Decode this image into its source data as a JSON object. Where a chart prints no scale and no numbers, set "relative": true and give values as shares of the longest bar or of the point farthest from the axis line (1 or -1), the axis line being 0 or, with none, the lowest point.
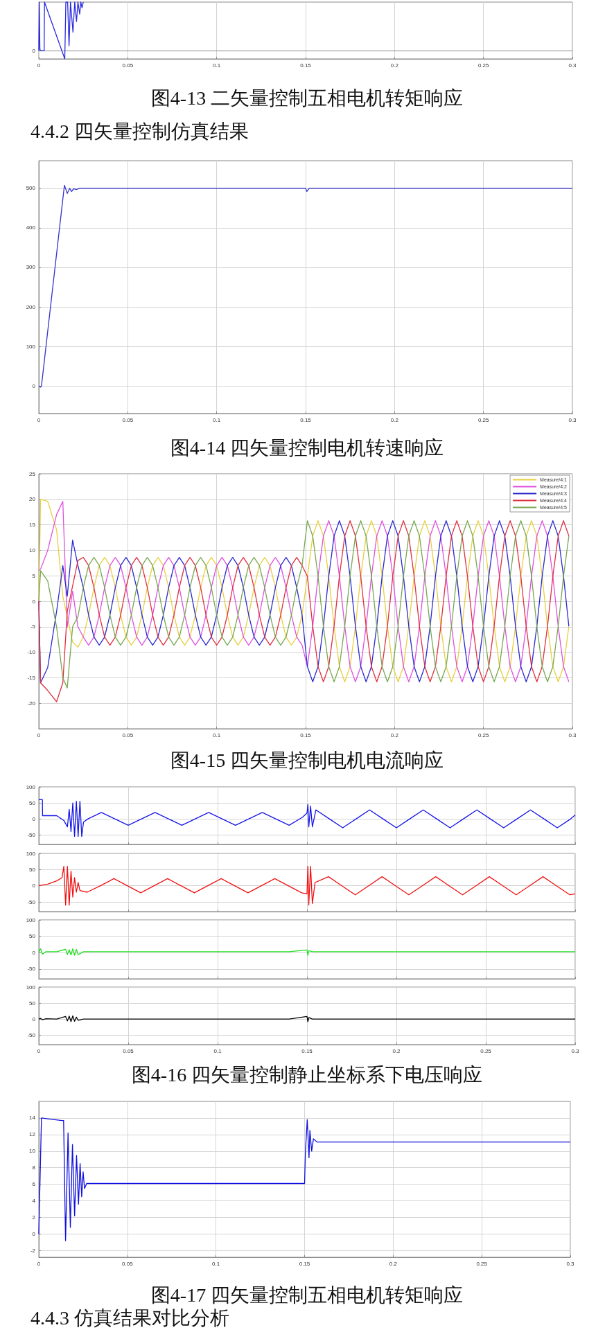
{
  "chart_data": [
    {
      "type": "line",
      "title": "图4-13 二矢量控制五相电机转矩响应",
      "relative": true,
      "tick_labels": "x",
      "grid": "x",
      "annotations": [
        {
          "text": "0",
          "x": 0,
          "y": 0
        },
        "4.4.2 四矢量控制仿真结果"
      ],
      "x": [
        0,
        0.0003,
        0.0006,
        0.0008,
        0.003,
        0.0032,
        0.0146,
        0.0152,
        0.0162,
        0.017,
        0.0178,
        0.0192,
        0.0202,
        0.0212,
        0.022,
        0.023,
        0.0236,
        0.0243,
        0.025
      ],
      "series": [
        {
          "color": "#2a2ae0",
          "values": [
            0,
            1,
            0.05,
            0,
            0,
            1,
            -0.17,
            1,
            1,
            0.1,
            1,
            0.38,
            1,
            0.6,
            1,
            0.75,
            1,
            0.88,
            1
          ]
        }
      ],
      "xlim": [
        0,
        0.3
      ],
      "xticks": [
        0,
        0.05,
        0.1,
        0.15,
        0.2,
        0.25,
        0.3
      ]
    },
    {
      "type": "line",
      "title": "图4-14 四矢量控制电机转速响应",
      "grid": true,
      "x": [
        0,
        0.001,
        0.0015,
        0.0144,
        0.016,
        0.0173,
        0.0184,
        0.0196,
        0.021,
        0.023,
        0.1,
        0.15,
        0.1507,
        0.152,
        0.2,
        0.3
      ],
      "series": [
        {
          "color": "#3333cc",
          "values": [
            0,
            -3,
            0,
            508,
            487,
            500,
            492,
            499,
            497,
            500,
            500,
            500,
            492,
            500,
            500,
            500
          ]
        }
      ],
      "xlim": [
        0,
        0.3
      ],
      "xticks": [
        0,
        0.05,
        0.1,
        0.15,
        0.2,
        0.25,
        0.3
      ],
      "ylim": [
        -70,
        570
      ],
      "yticks": [
        0,
        100,
        200,
        300,
        400,
        500
      ]
    },
    {
      "type": "line",
      "title": "图4-15 四矢量控制电机电流响应",
      "grid": true,
      "legend": "top right",
      "x": [
        0,
        0.001,
        0.005,
        0.01,
        0.0135,
        0.016,
        0.019,
        0.022,
        0.025,
        0.028,
        0.031,
        0.034,
        0.037,
        0.04,
        0.043,
        0.046,
        0.049,
        0.052,
        0.055,
        0.058,
        0.061,
        0.064,
        0.067,
        0.07,
        0.073,
        0.076,
        0.079,
        0.082,
        0.085,
        0.088,
        0.091,
        0.094,
        0.097,
        0.1,
        0.103,
        0.106,
        0.109,
        0.112,
        0.115,
        0.118,
        0.121,
        0.124,
        0.127,
        0.13,
        0.133,
        0.136,
        0.139,
        0.142,
        0.145,
        0.148,
        0.151,
        0.154,
        0.157,
        0.16,
        0.163,
        0.166,
        0.169,
        0.172,
        0.175,
        0.178,
        0.181,
        0.184,
        0.187,
        0.19,
        0.193,
        0.196,
        0.199,
        0.202,
        0.205,
        0.208,
        0.211,
        0.214,
        0.217,
        0.22,
        0.223,
        0.226,
        0.229,
        0.232,
        0.235,
        0.238,
        0.241,
        0.244,
        0.247,
        0.25,
        0.253,
        0.256,
        0.259,
        0.262,
        0.265,
        0.268,
        0.271,
        0.274,
        0.277,
        0.28,
        0.283,
        0.286,
        0.289,
        0.292,
        0.295,
        0.298
      ],
      "series": [
        {
          "name": "Measure/4:1",
          "color": "#e8d040",
          "values": [
            0,
            20,
            19.6,
            14,
            1,
            -3,
            -8,
            -9,
            -7,
            -2.7,
            2.7,
            7,
            8.6,
            7,
            2.7,
            -2.7,
            -7,
            -8.6,
            -7,
            -2.7,
            2.7,
            7,
            8.6,
            7,
            2.7,
            -2.7,
            -7,
            -8.6,
            -7,
            -2.7,
            2.7,
            7,
            8.6,
            7,
            2.7,
            -2.7,
            -7,
            -8.6,
            -7,
            -2.7,
            2.7,
            7,
            8.6,
            7,
            2.7,
            -2.7,
            -7,
            -8.6,
            -7,
            -2.7,
            4.9,
            12.8,
            15.8,
            12.8,
            4.9,
            -4.9,
            -12.8,
            -15.8,
            -12.8,
            -4.9,
            4.9,
            12.8,
            15.8,
            12.8,
            4.9,
            -4.9,
            -12.8,
            -15.8,
            -12.8,
            -4.9,
            4.9,
            12.8,
            15.8,
            12.8,
            4.9,
            -4.9,
            -12.8,
            -15.8,
            -12.8,
            -4.9,
            4.9,
            12.8,
            15.8,
            12.8,
            4.9,
            -4.9,
            -12.8,
            -15.8,
            -12.8,
            -4.9,
            4.9,
            12.8,
            15.8,
            12.8,
            4.9,
            -4.9,
            -12.8,
            -15.8,
            -12.8,
            -4.9
          ]
        },
        {
          "name": "Measure/4:2",
          "color": "#e050e0",
          "values": [
            6,
            6.3,
            10,
            17,
            19.6,
            -5,
            2,
            -5,
            -7,
            -8.6,
            -7,
            -2.7,
            2.7,
            7,
            8.6,
            7,
            2.7,
            -2.7,
            -7,
            -8.6,
            -7,
            -2.7,
            2.7,
            7,
            8.6,
            7,
            2.7,
            -2.7,
            -7,
            -8.6,
            -7,
            -2.7,
            2.7,
            7,
            8.6,
            7,
            2.7,
            -2.7,
            -7,
            -8.6,
            -7,
            -2.7,
            2.7,
            7,
            8.6,
            7,
            2.7,
            -2.7,
            -7,
            -8.6,
            -12.8,
            -4.9,
            4.9,
            12.8,
            15.8,
            12.8,
            4.9,
            -4.9,
            -12.8,
            -15.8,
            -12.8,
            -4.9,
            4.9,
            12.8,
            15.8,
            12.8,
            4.9,
            -4.9,
            -12.8,
            -15.8,
            -12.8,
            -4.9,
            4.9,
            12.8,
            15.8,
            12.8,
            4.9,
            -4.9,
            -12.8,
            -15.8,
            -12.8,
            -4.9,
            4.9,
            12.8,
            15.8,
            12.8,
            4.9,
            -4.9,
            -12.8,
            -15.8,
            -12.8,
            -4.9,
            4.9,
            12.8,
            15.8,
            12.8,
            4.9,
            -4.9,
            -12.8,
            -15.8
          ]
        },
        {
          "name": "Measure/4:3",
          "color": "#2a2ad0",
          "values": [
            0,
            -16,
            -13,
            -2,
            7,
            1,
            12,
            7,
            2.7,
            -2.7,
            -7,
            -8.6,
            -7,
            -2.7,
            2.7,
            7,
            8.6,
            7,
            2.7,
            -2.7,
            -7,
            -8.6,
            -7,
            -2.7,
            2.7,
            7,
            8.6,
            7,
            2.7,
            -2.7,
            -7,
            -8.6,
            -7,
            -2.7,
            2.7,
            7,
            8.6,
            7,
            2.7,
            -2.7,
            -7,
            -8.6,
            -7,
            -2.7,
            2.7,
            7,
            8.6,
            7,
            2.7,
            -2.7,
            -12.8,
            -15.8,
            -12.8,
            -4.9,
            4.9,
            12.8,
            15.8,
            12.8,
            4.9,
            -4.9,
            -12.8,
            -15.8,
            -12.8,
            -4.9,
            4.9,
            12.8,
            15.8,
            12.8,
            4.9,
            -4.9,
            -12.8,
            -15.8,
            -12.8,
            -4.9,
            4.9,
            12.8,
            15.8,
            12.8,
            4.9,
            -4.9,
            -12.8,
            -15.8,
            -12.8,
            -4.9,
            4.9,
            12.8,
            15.8,
            12.8,
            4.9,
            -4.9,
            -12.8,
            -15.8,
            -12.8,
            -4.9,
            4.9,
            12.8,
            15.8,
            12.8,
            4.9,
            -4.9
          ]
        },
        {
          "name": "Measure/4:4",
          "color": "#e03040",
          "values": [
            0,
            -16,
            -17.5,
            -19.7,
            -16,
            -2,
            3,
            8,
            8.6,
            7,
            2.7,
            -2.7,
            -7,
            -8.6,
            -7,
            -2.7,
            2.7,
            7,
            8.6,
            7,
            2.7,
            -2.7,
            -7,
            -8.6,
            -7,
            -2.7,
            2.7,
            7,
            8.6,
            7,
            2.7,
            -2.7,
            -7,
            -8.6,
            -7,
            -2.7,
            2.7,
            7,
            8.6,
            7,
            2.7,
            -2.7,
            -7,
            -8.6,
            -7,
            -2.7,
            2.7,
            7,
            8.6,
            7,
            4.9,
            -4.9,
            -12.8,
            -15.8,
            -12.8,
            -4.9,
            4.9,
            12.8,
            15.8,
            12.8,
            4.9,
            -4.9,
            -12.8,
            -15.8,
            -12.8,
            -4.9,
            4.9,
            12.8,
            15.8,
            12.8,
            4.9,
            -4.9,
            -12.8,
            -15.8,
            -12.8,
            -4.9,
            4.9,
            12.8,
            15.8,
            12.8,
            4.9,
            -4.9,
            -12.8,
            -15.8,
            -12.8,
            -4.9,
            4.9,
            12.8,
            15.8,
            12.8,
            4.9,
            -4.9,
            -12.8,
            -15.8,
            -12.8,
            -4.9,
            4.9,
            12.8,
            15.8,
            12.8
          ]
        },
        {
          "name": "Measure/4:5",
          "color": "#78a850",
          "values": [
            0,
            6,
            4,
            -5,
            -15,
            -17,
            -5,
            -3,
            2.7,
            7,
            8.6,
            7,
            2.7,
            -2.7,
            -7,
            -8.6,
            -7,
            -2.7,
            2.7,
            7,
            8.6,
            7,
            2.7,
            -2.7,
            -7,
            -8.6,
            -7,
            -2.7,
            2.7,
            7,
            8.6,
            7,
            2.7,
            -2.7,
            -7,
            -8.6,
            -7,
            -2.7,
            2.7,
            7,
            8.6,
            7,
            2.7,
            -2.7,
            -7,
            -8.6,
            -7,
            -2.7,
            2.7,
            7,
            15.8,
            12.8,
            4.9,
            -4.9,
            -12.8,
            -15.8,
            -12.8,
            -4.9,
            4.9,
            12.8,
            15.8,
            12.8,
            4.9,
            -4.9,
            -12.8,
            -15.8,
            -12.8,
            -4.9,
            4.9,
            12.8,
            15.8,
            12.8,
            4.9,
            -4.9,
            -12.8,
            -15.8,
            -12.8,
            -4.9,
            4.9,
            12.8,
            15.8,
            12.8,
            4.9,
            -4.9,
            -12.8,
            -15.8,
            -12.8,
            -4.9,
            4.9,
            12.8,
            15.8,
            12.8,
            4.9,
            -4.9,
            -12.8,
            -15.8,
            -12.8,
            -4.9,
            4.9,
            12.8
          ]
        }
      ],
      "xlim": [
        0,
        0.3
      ],
      "xticks": [
        0,
        0.05,
        0.1,
        0.15,
        0.2,
        0.25,
        0.3
      ],
      "ylim": [
        -25,
        25
      ],
      "yticks": [
        -20,
        -15,
        -10,
        -5,
        0,
        5,
        10,
        15,
        20,
        25
      ]
    },
    {
      "type": "line",
      "grid": true,
      "tick_labels": "y",
      "x": [
        0,
        0.002,
        0.0021,
        0.01,
        0.014,
        0.016,
        0.017,
        0.018,
        0.019,
        0.02,
        0.021,
        0.022,
        0.023,
        0.024,
        0.025,
        0.0275,
        0.035,
        0.0425,
        0.05,
        0.0575,
        0.065,
        0.0725,
        0.08,
        0.0875,
        0.095,
        0.1025,
        0.11,
        0.1175,
        0.125,
        0.1325,
        0.14,
        0.1475,
        0.15,
        0.1505,
        0.151,
        0.152,
        0.153,
        0.155,
        0.1625,
        0.17,
        0.1775,
        0.185,
        0.1925,
        0.2,
        0.2075,
        0.215,
        0.2225,
        0.23,
        0.2375,
        0.245,
        0.2525,
        0.26,
        0.2675,
        0.275,
        0.2825,
        0.29,
        0.2975,
        0.3
      ],
      "series": [
        {
          "color": "#1515e8",
          "values": [
            60,
            60,
            10,
            10,
            -5,
            -25,
            30,
            -40,
            50,
            -55,
            55,
            -55,
            55,
            -55,
            -10,
            0,
            20,
            0,
            -20,
            0,
            20,
            0,
            -20,
            0,
            20,
            0,
            -20,
            0,
            20,
            0,
            -20,
            5,
            18,
            45,
            -25,
            40,
            -25,
            28,
            0,
            -28,
            0,
            28,
            0,
            -28,
            0,
            28,
            0,
            -28,
            0,
            28,
            0,
            -28,
            0,
            28,
            0,
            -28,
            0,
            12
          ]
        }
      ],
      "xlim": [
        0,
        0.3
      ],
      "xticks": [
        0,
        0.05,
        0.1,
        0.15,
        0.2,
        0.25,
        0.3
      ],
      "ylim": [
        -80,
        100
      ],
      "yticks": [
        -50,
        0,
        50,
        100
      ]
    },
    {
      "type": "line",
      "grid": true,
      "tick_labels": "y",
      "x": [
        0,
        0.005,
        0.01,
        0.013,
        0.014,
        0.015,
        0.016,
        0.017,
        0.018,
        0.019,
        0.02,
        0.021,
        0.022,
        0.023,
        0.027,
        0.0345,
        0.042,
        0.0495,
        0.057,
        0.0645,
        0.072,
        0.0795,
        0.087,
        0.0945,
        0.102,
        0.1095,
        0.117,
        0.1245,
        0.132,
        0.1395,
        0.147,
        0.15,
        0.1505,
        0.151,
        0.152,
        0.153,
        0.1545,
        0.162,
        0.1695,
        0.177,
        0.1845,
        0.192,
        0.1995,
        0.207,
        0.2145,
        0.222,
        0.2295,
        0.237,
        0.2445,
        0.252,
        0.2595,
        0.267,
        0.2745,
        0.282,
        0.2895,
        0.297,
        0.3
      ],
      "series": [
        {
          "color": "#f01010",
          "values": [
            0,
            5,
            15,
            25,
            60,
            -60,
            60,
            -60,
            45,
            -35,
            25,
            -20,
            10,
            -15,
            -20,
            0,
            22,
            0,
            -22,
            0,
            22,
            0,
            -22,
            0,
            22,
            0,
            -22,
            0,
            22,
            0,
            -22,
            -25,
            60,
            -60,
            60,
            -55,
            10,
            28,
            0,
            -28,
            0,
            28,
            0,
            -28,
            0,
            28,
            0,
            -28,
            0,
            28,
            0,
            -28,
            0,
            28,
            0,
            -28,
            -25
          ]
        }
      ],
      "xlim": [
        0,
        0.3
      ],
      "xticks": [
        0,
        0.05,
        0.1,
        0.15,
        0.2,
        0.25,
        0.3
      ],
      "ylim": [
        -80,
        100
      ],
      "yticks": [
        -50,
        0,
        50,
        100
      ]
    },
    {
      "type": "line",
      "grid": true,
      "tick_labels": "y",
      "x": [
        0,
        0.001,
        0.002,
        0.004,
        0.01,
        0.015,
        0.016,
        0.017,
        0.018,
        0.019,
        0.02,
        0.021,
        0.022,
        0.025,
        0.04,
        0.06,
        0.08,
        0.1,
        0.12,
        0.14,
        0.15,
        0.1505,
        0.151,
        0.153,
        0.17,
        0.2,
        0.23,
        0.26,
        0.3
      ],
      "series": [
        {
          "color": "#20e020",
          "values": [
            0,
            12,
            -5,
            3,
            3,
            10,
            -6,
            9,
            -7,
            12,
            -8,
            10,
            -6,
            3,
            3,
            3,
            3,
            3,
            3,
            3,
            8,
            -8,
            6,
            3,
            3,
            3,
            3,
            3,
            3
          ]
        }
      ],
      "xlim": [
        0,
        0.3
      ],
      "xticks": [
        0,
        0.05,
        0.1,
        0.15,
        0.2,
        0.25,
        0.3
      ],
      "ylim": [
        -80,
        100
      ],
      "yticks": [
        -50,
        0,
        50,
        100
      ]
    },
    {
      "type": "line",
      "title": "图4-16 四矢量控制静止坐标系下电压响应",
      "grid": true,
      "x": [
        0,
        0.001,
        0.002,
        0.004,
        0.01,
        0.015,
        0.016,
        0.017,
        0.018,
        0.019,
        0.02,
        0.021,
        0.022,
        0.025,
        0.04,
        0.06,
        0.08,
        0.1,
        0.12,
        0.14,
        0.15,
        0.1505,
        0.151,
        0.153,
        0.17,
        0.2,
        0.23,
        0.26,
        0.3
      ],
      "series": [
        {
          "color": "#000000",
          "values": [
            0,
            2,
            -2,
            1,
            0,
            8,
            -6,
            9,
            -8,
            10,
            -7,
            6,
            -4,
            0,
            0,
            0,
            0,
            0,
            0,
            0,
            8,
            -8,
            5,
            0,
            0,
            0,
            0,
            0,
            0
          ]
        }
      ],
      "xlim": [
        0,
        0.3
      ],
      "xticks": [
        0,
        0.05,
        0.1,
        0.15,
        0.2,
        0.25,
        0.3
      ],
      "ylim": [
        -80,
        100
      ],
      "yticks": [
        -50,
        0,
        50,
        100
      ]
    },
    {
      "type": "line",
      "title": "图4-17 四矢量控制五相电机转矩响应",
      "grid": true,
      "annotations": [
        "4.4.3 仿真结果对比分析"
      ],
      "x": [
        0,
        0.0015,
        0.005,
        0.013,
        0.014,
        0.0151,
        0.0165,
        0.0178,
        0.019,
        0.0202,
        0.0213,
        0.0224,
        0.0233,
        0.0242,
        0.025,
        0.0258,
        0.027,
        0.05,
        0.1,
        0.15,
        0.1505,
        0.1515,
        0.1525,
        0.153,
        0.154,
        0.155,
        0.157,
        0.2,
        0.25,
        0.3
      ],
      "series": [
        {
          "color": "#1010e0",
          "values": [
            0,
            14,
            13.9,
            13.7,
            13.7,
            -0.8,
            12.2,
            0.8,
            10.8,
            2.2,
            9.5,
            3.6,
            8.5,
            4.5,
            7.5,
            5.5,
            6.1,
            6.1,
            6.1,
            6.1,
            10,
            13.8,
            9.2,
            12.5,
            10,
            11.5,
            11.1,
            11.1,
            11.1,
            11.1
          ]
        }
      ],
      "xlim": [
        0,
        0.3
      ],
      "xticks": [
        0,
        0.05,
        0.1,
        0.15,
        0.2,
        0.25,
        0.3
      ],
      "ylim": [
        -2.8,
        16
      ],
      "yticks": [
        -2,
        0,
        2,
        4,
        6,
        8,
        10,
        12,
        14
      ]
    }
  ]
}
